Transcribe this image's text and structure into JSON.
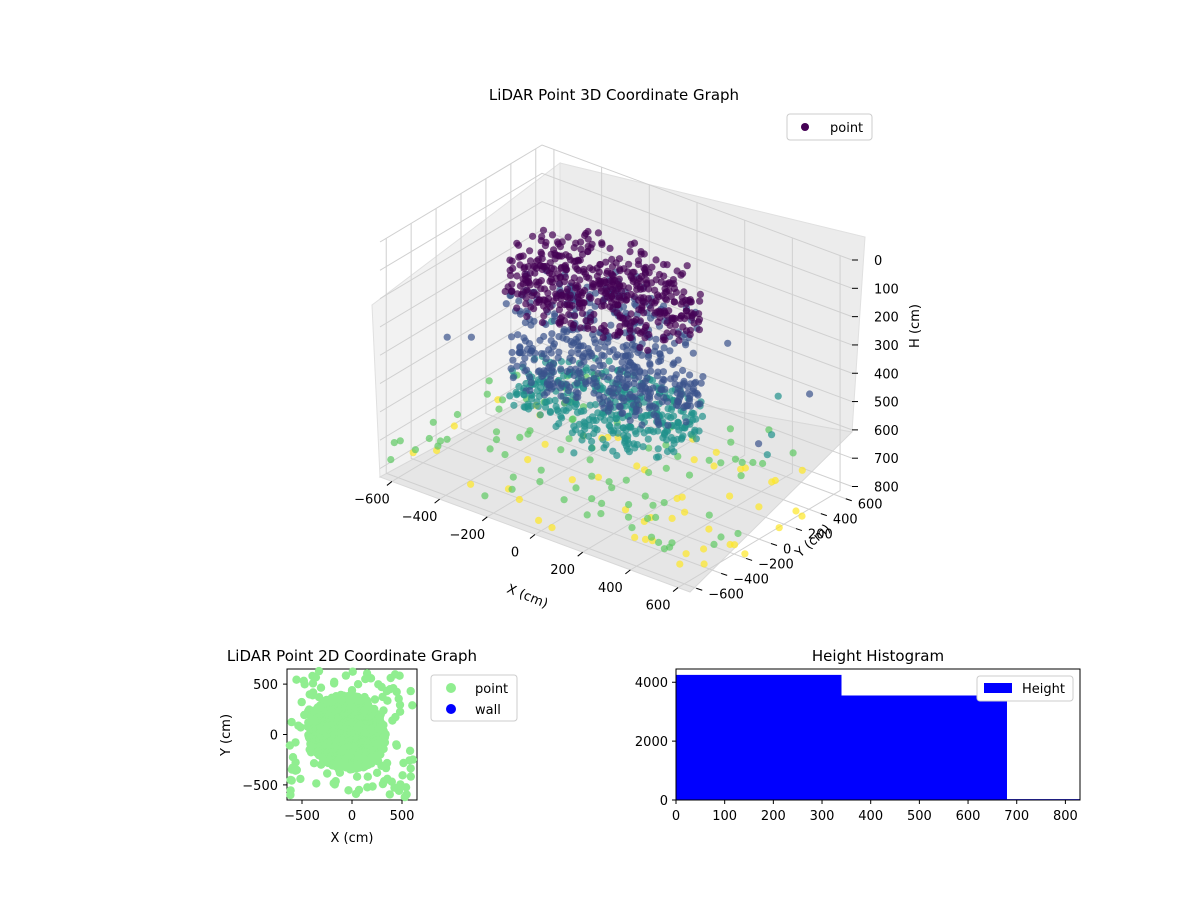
{
  "colors": {
    "viridis_low": "#440154",
    "viridis_mid": "#3b528b",
    "viridis_teal": "#21918c",
    "viridis_green": "#5ec962",
    "viridis_high": "#fde725",
    "point_2d": "#90ee90",
    "wall_2d": "#0000ff",
    "hist_bar": "#0000ff",
    "pane": "#f2f2f2",
    "grid": "#cfcfcf"
  },
  "chart_data": [
    {
      "type": "scatter",
      "projection": "3d",
      "title": "LiDAR Point 3D Coordinate Graph",
      "xlabel": "X (cm)",
      "ylabel": "Y (cm)",
      "zlabel": "H (cm)",
      "xticks": [
        "−600",
        "−400",
        "−200",
        "0",
        "200",
        "400",
        "600"
      ],
      "yticks": [
        "−600",
        "−400",
        "−200",
        "0",
        "200",
        "400",
        "600"
      ],
      "zticks": [
        "0",
        "100",
        "200",
        "300",
        "400",
        "500",
        "600",
        "700",
        "800"
      ],
      "xlim": [
        -650,
        650
      ],
      "ylim": [
        -650,
        650
      ],
      "zlim": [
        0,
        830
      ],
      "z_inverted": true,
      "colormap": "viridis",
      "legend": {
        "position": "top-right",
        "entries": [
          "point"
        ]
      },
      "grid": true,
      "series": [
        {
          "name": "point",
          "description_of_clusters": [
            {
              "x_range": [
                -450,
                300
              ],
              "y_range": [
                -300,
                400
              ],
              "h_range": [
                100,
                300
              ],
              "density": "high"
            },
            {
              "x_range": [
                -400,
                350
              ],
              "y_range": [
                -350,
                300
              ],
              "h_range": [
                400,
                600
              ],
              "density": "high"
            },
            {
              "x_range": [
                -650,
                650
              ],
              "y_range": [
                -650,
                650
              ],
              "h_range": [
                700,
                820
              ],
              "density": "sparse"
            }
          ]
        }
      ]
    },
    {
      "type": "scatter",
      "title": "LiDAR Point 2D Coordinate Graph",
      "xlabel": "X (cm)",
      "ylabel": "Y (cm)",
      "xticks": [
        "−500",
        "0",
        "500"
      ],
      "yticks": [
        "−500",
        "0",
        "500"
      ],
      "xlim": [
        -650,
        650
      ],
      "ylim": [
        -650,
        650
      ],
      "legend": {
        "position": "outside-right",
        "entries": [
          "point",
          "wall"
        ]
      },
      "series": [
        {
          "name": "point",
          "color": "#90ee90"
        },
        {
          "name": "wall",
          "color": "#0000ff"
        }
      ]
    },
    {
      "type": "bar",
      "subtype": "histogram",
      "title": "Height Histogram",
      "xticks": [
        "0",
        "100",
        "200",
        "300",
        "400",
        "500",
        "600",
        "700",
        "800"
      ],
      "yticks": [
        "0",
        "2000",
        "4000"
      ],
      "xlim": [
        0,
        830
      ],
      "ylim": [
        0,
        4450
      ],
      "legend": {
        "position": "top-right",
        "entries": [
          "Height"
        ]
      },
      "bins": [
        {
          "x0": 0,
          "x1": 340,
          "count": 4250
        },
        {
          "x0": 340,
          "x1": 680,
          "count": 3550
        },
        {
          "x0": 680,
          "x1": 830,
          "count": 30
        }
      ],
      "series": [
        {
          "name": "Height",
          "color": "#0000ff"
        }
      ]
    }
  ]
}
